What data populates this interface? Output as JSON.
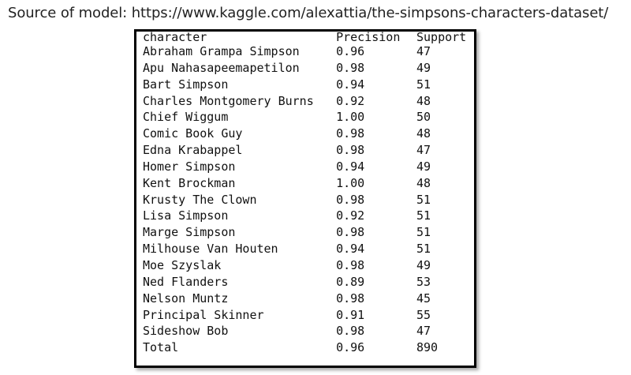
{
  "source": {
    "text": "Source of model: https://www.kaggle.com/alexattia/the-simpsons-characters-dataset/"
  },
  "table": {
    "headers": {
      "character": "character",
      "precision": "Precision",
      "support": "Support"
    },
    "rows": [
      {
        "character": "Abraham Grampa Simpson",
        "precision": "0.96",
        "support": "47"
      },
      {
        "character": "Apu Nahasapeemapetilon",
        "precision": "0.98",
        "support": "49"
      },
      {
        "character": "Bart Simpson",
        "precision": "0.94",
        "support": "51"
      },
      {
        "character": "Charles Montgomery Burns",
        "precision": "0.92",
        "support": "48"
      },
      {
        "character": "Chief Wiggum",
        "precision": "1.00",
        "support": "50"
      },
      {
        "character": "Comic Book Guy",
        "precision": "0.98",
        "support": "48"
      },
      {
        "character": "Edna Krabappel",
        "precision": "0.98",
        "support": "47"
      },
      {
        "character": "Homer Simpson",
        "precision": "0.94",
        "support": "49"
      },
      {
        "character": "Kent Brockman",
        "precision": "1.00",
        "support": "48"
      },
      {
        "character": "Krusty The Clown",
        "precision": "0.98",
        "support": "51"
      },
      {
        "character": "Lisa Simpson",
        "precision": "0.92",
        "support": "51"
      },
      {
        "character": "Marge Simpson",
        "precision": "0.98",
        "support": "51"
      },
      {
        "character": "Milhouse Van Houten",
        "precision": "0.94",
        "support": "51"
      },
      {
        "character": "Moe Szyslak",
        "precision": "0.98",
        "support": "49"
      },
      {
        "character": "Ned Flanders",
        "precision": "0.89",
        "support": "53"
      },
      {
        "character": "Nelson Muntz",
        "precision": "0.98",
        "support": "45"
      },
      {
        "character": "Principal Skinner",
        "precision": "0.91",
        "support": "55"
      },
      {
        "character": "Sideshow Bob",
        "precision": "0.98",
        "support": "47"
      },
      {
        "character": "Total",
        "precision": "0.96",
        "support": "890"
      }
    ]
  }
}
